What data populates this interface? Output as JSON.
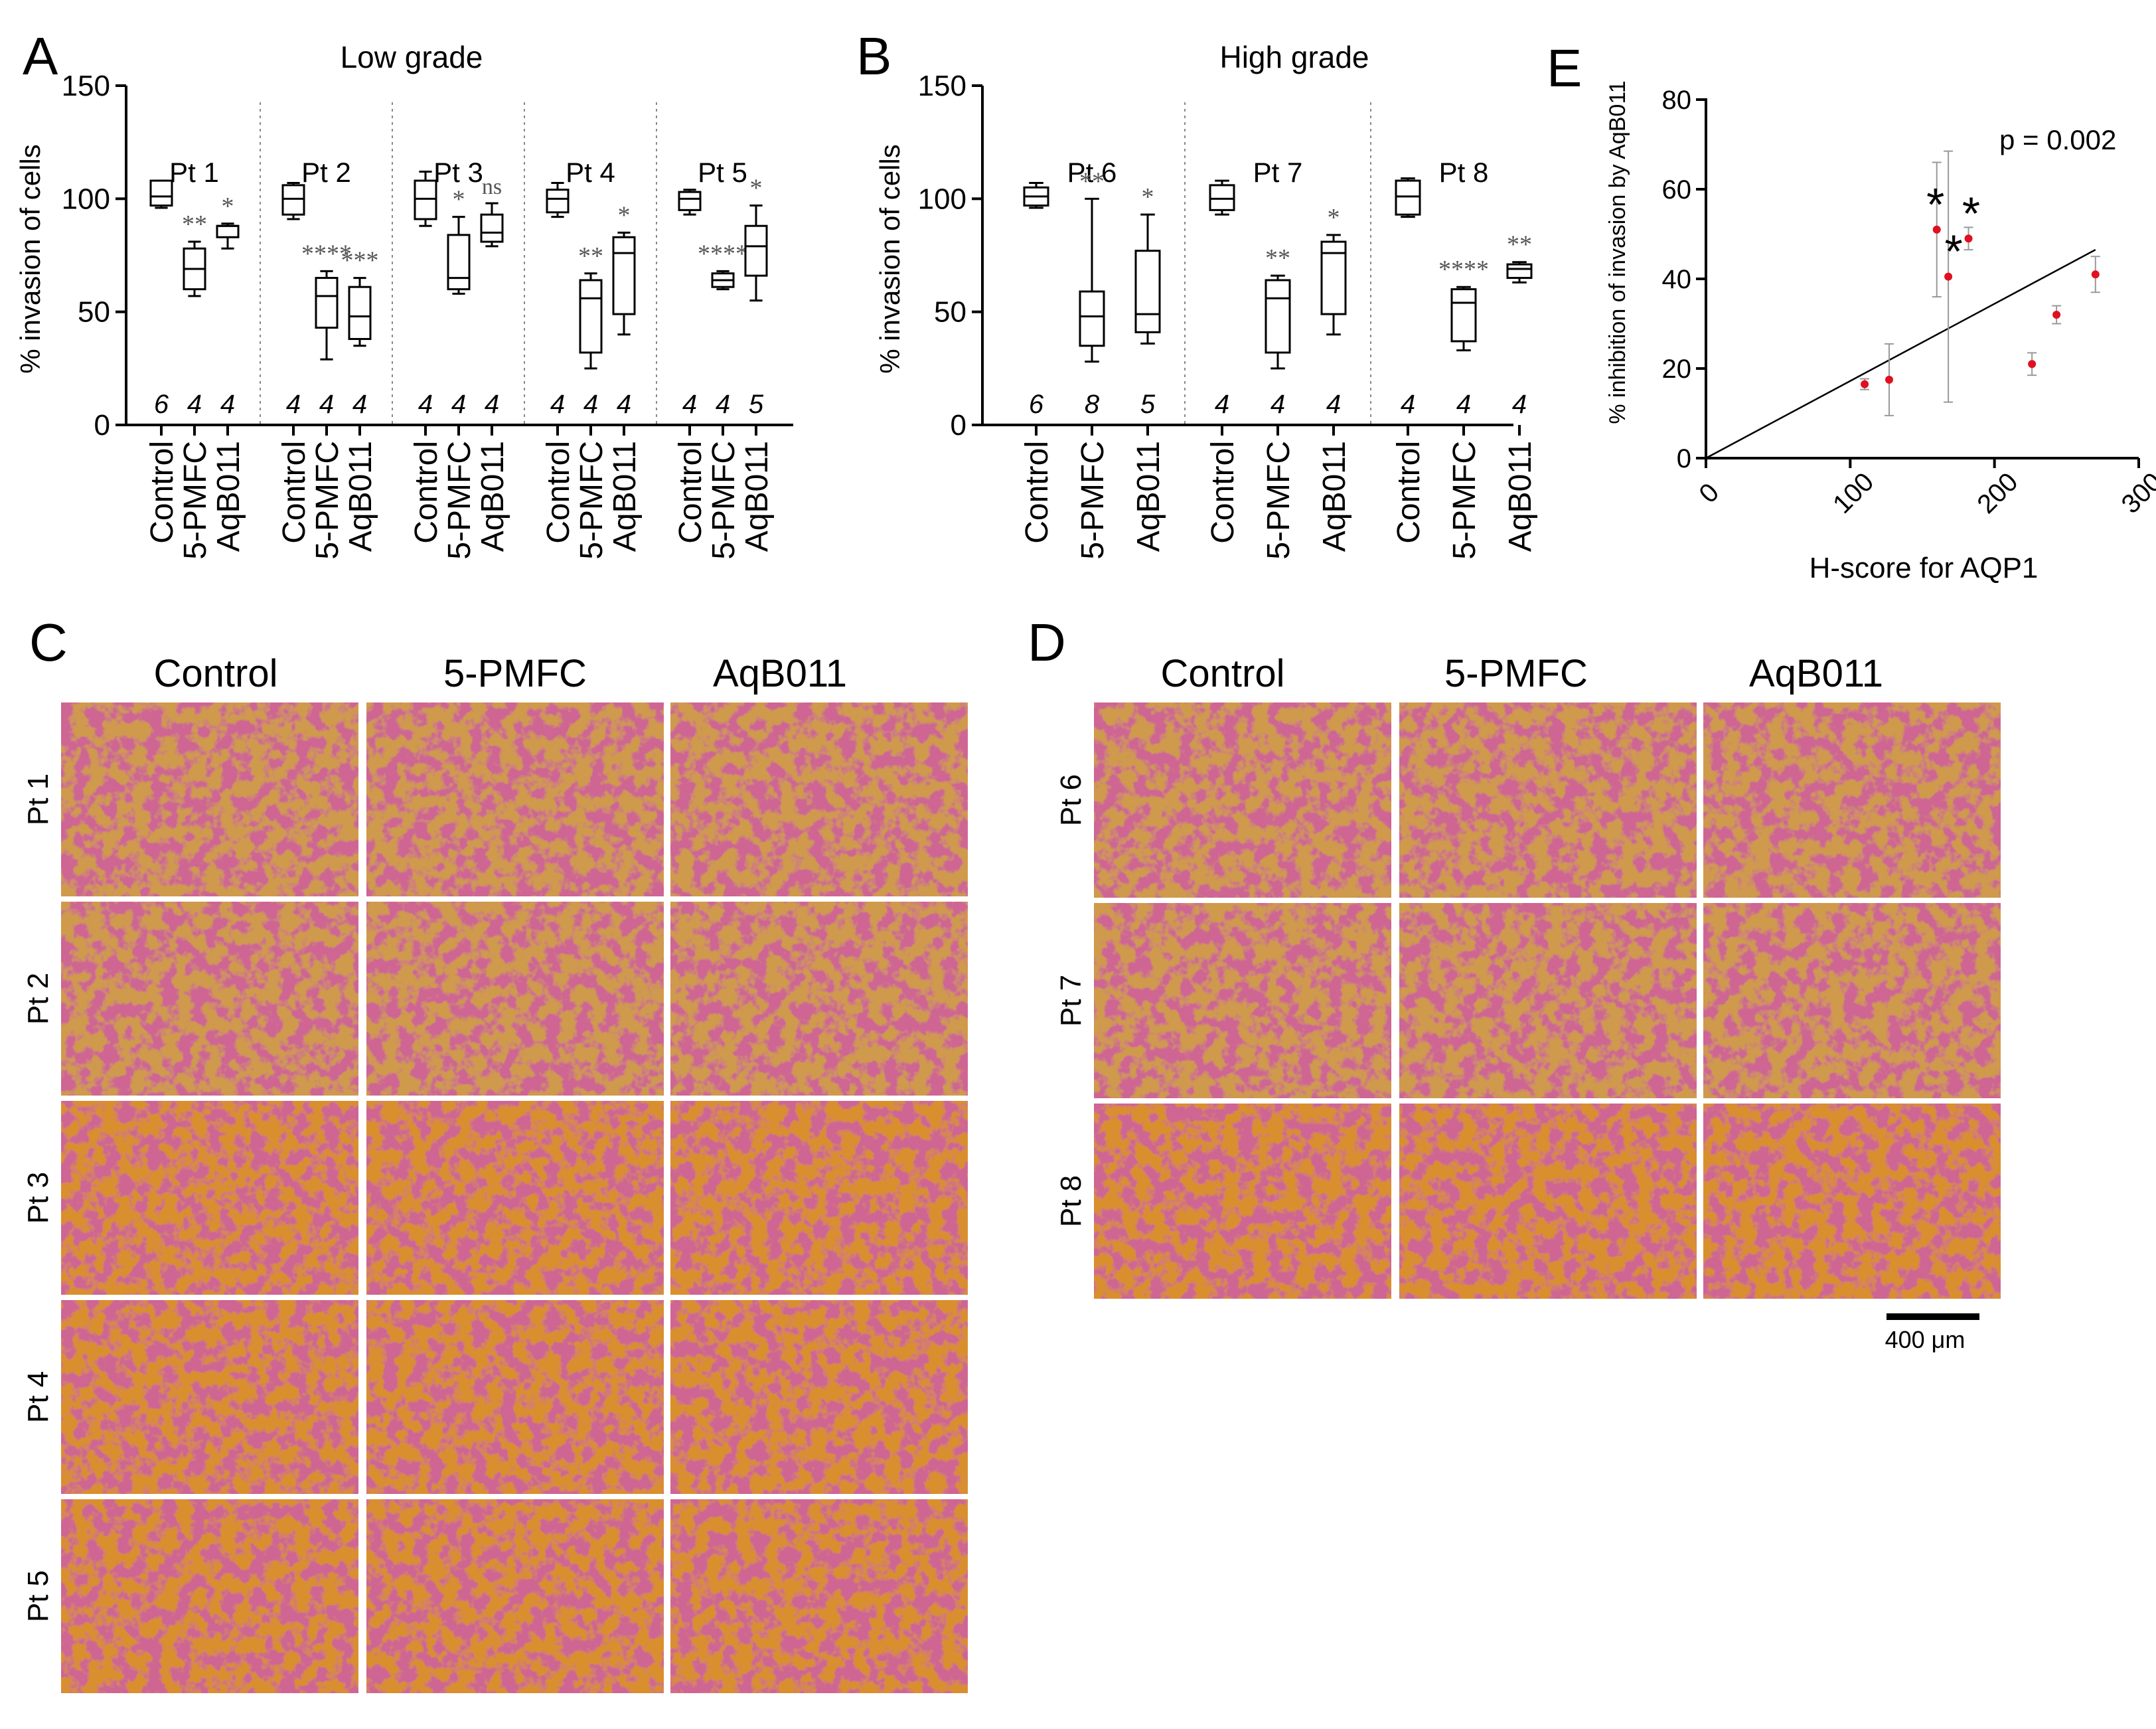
{
  "panel_letters": {
    "A": "A",
    "B": "B",
    "C": "C",
    "D": "D",
    "E": "E"
  },
  "colors": {
    "photo_bg": "#cf9a4c",
    "photo_bg_late": "#d98f2e",
    "cell_stain": "#a3244a",
    "point": "#e01020"
  },
  "chart_data": [
    {
      "type": "box",
      "panel": "A",
      "title": "Low grade",
      "ylabel": "% invasion of cells",
      "ylim": [
        0,
        150
      ],
      "yticks": [
        0,
        50,
        100,
        150
      ],
      "categories": [
        "Control",
        "5-PMFC",
        "AqB011"
      ],
      "groups": [
        {
          "name": "Pt 1",
          "boxes": [
            {
              "min": 96,
              "q1": 97,
              "median": 101,
              "q3": 108,
              "max": 108,
              "n": "6",
              "sig": ""
            },
            {
              "min": 57,
              "q1": 60,
              "median": 69,
              "q3": 78,
              "max": 81,
              "n": "4",
              "sig": "**"
            },
            {
              "min": 78,
              "q1": 83,
              "median": 88,
              "q3": 88,
              "max": 89,
              "n": "4",
              "sig": "*"
            }
          ]
        },
        {
          "name": "Pt 2",
          "boxes": [
            {
              "min": 91,
              "q1": 93,
              "median": 100,
              "q3": 106,
              "max": 107,
              "n": "4",
              "sig": ""
            },
            {
              "min": 29,
              "q1": 43,
              "median": 57,
              "q3": 65,
              "max": 68,
              "n": "4",
              "sig": "****"
            },
            {
              "min": 35,
              "q1": 38,
              "median": 48,
              "q3": 61,
              "max": 65,
              "n": "4",
              "sig": "***"
            }
          ]
        },
        {
          "name": "Pt 3",
          "boxes": [
            {
              "min": 88,
              "q1": 91,
              "median": 100,
              "q3": 108,
              "max": 112,
              "n": "4",
              "sig": ""
            },
            {
              "min": 58,
              "q1": 60,
              "median": 65,
              "q3": 84,
              "max": 92,
              "n": "4",
              "sig": "*"
            },
            {
              "min": 79,
              "q1": 81,
              "median": 85,
              "q3": 93,
              "max": 98,
              "n": "4",
              "sig": "ns"
            }
          ]
        },
        {
          "name": "Pt 4",
          "boxes": [
            {
              "min": 92,
              "q1": 94,
              "median": 100,
              "q3": 104,
              "max": 107,
              "n": "4",
              "sig": ""
            },
            {
              "min": 25,
              "q1": 32,
              "median": 56,
              "q3": 64,
              "max": 67,
              "n": "4",
              "sig": "**"
            },
            {
              "min": 40,
              "q1": 49,
              "median": 76,
              "q3": 83,
              "max": 85,
              "n": "4",
              "sig": "*"
            }
          ]
        },
        {
          "name": "Pt 5",
          "boxes": [
            {
              "min": 93,
              "q1": 95,
              "median": 100,
              "q3": 103,
              "max": 104,
              "n": "4",
              "sig": ""
            },
            {
              "min": 60,
              "q1": 61,
              "median": 64,
              "q3": 67,
              "max": 68,
              "n": "4",
              "sig": "****"
            },
            {
              "min": 55,
              "q1": 66,
              "median": 79,
              "q3": 88,
              "max": 97,
              "n": "5",
              "sig": "*"
            }
          ]
        }
      ]
    },
    {
      "type": "box",
      "panel": "B",
      "title": "High grade",
      "ylabel": "% invasion of cells",
      "ylim": [
        0,
        150
      ],
      "yticks": [
        0,
        50,
        100,
        150
      ],
      "categories": [
        "Control",
        "5-PMFC",
        "AqB011"
      ],
      "groups": [
        {
          "name": "Pt 6",
          "boxes": [
            {
              "min": 96,
              "q1": 97,
              "median": 101,
              "q3": 105,
              "max": 107,
              "n": "6",
              "sig": ""
            },
            {
              "min": 28,
              "q1": 35,
              "median": 48,
              "q3": 59,
              "max": 100,
              "n": "8",
              "sig": "**"
            },
            {
              "min": 36,
              "q1": 41,
              "median": 49,
              "q3": 77,
              "max": 93,
              "n": "5",
              "sig": "*"
            }
          ]
        },
        {
          "name": "Pt 7",
          "boxes": [
            {
              "min": 93,
              "q1": 95,
              "median": 100,
              "q3": 106,
              "max": 108,
              "n": "4",
              "sig": ""
            },
            {
              "min": 25,
              "q1": 32,
              "median": 56,
              "q3": 64,
              "max": 66,
              "n": "4",
              "sig": "**"
            },
            {
              "min": 40,
              "q1": 49,
              "median": 76,
              "q3": 81,
              "max": 84,
              "n": "4",
              "sig": "*"
            }
          ]
        },
        {
          "name": "Pt 8",
          "boxes": [
            {
              "min": 92,
              "q1": 93,
              "median": 101,
              "q3": 108,
              "max": 109,
              "n": "4",
              "sig": ""
            },
            {
              "min": 33,
              "q1": 37,
              "median": 54,
              "q3": 60,
              "max": 61,
              "n": "4",
              "sig": "****"
            },
            {
              "min": 63,
              "q1": 65,
              "median": 69,
              "q3": 71,
              "max": 72,
              "n": "4",
              "sig": "**"
            }
          ]
        }
      ]
    },
    {
      "type": "scatter",
      "panel": "E",
      "xlabel": "H-score for AQP1",
      "ylabel": "% inhibition of invasion by AqB011",
      "xlim": [
        0,
        300
      ],
      "ylim": [
        0,
        80
      ],
      "xticks": [
        0,
        100,
        200,
        300
      ],
      "yticks": [
        0,
        20,
        40,
        60,
        80
      ],
      "annotation": "p = 0.002",
      "points": [
        {
          "x": 110,
          "y": 16.5,
          "err": 1.2,
          "mark": ""
        },
        {
          "x": 127,
          "y": 17.5,
          "err": 8,
          "mark": ""
        },
        {
          "x": 160,
          "y": 51,
          "err": 15,
          "mark": "*"
        },
        {
          "x": 168,
          "y": 40.5,
          "err": 28,
          "mark": "*"
        },
        {
          "x": 182,
          "y": 49,
          "err": 2.5,
          "mark": "*"
        },
        {
          "x": 226,
          "y": 21,
          "err": 2.5,
          "mark": ""
        },
        {
          "x": 243,
          "y": 32,
          "err": 2,
          "mark": ""
        },
        {
          "x": 270,
          "y": 41,
          "err": 4,
          "mark": ""
        }
      ],
      "fit_line": {
        "x": [
          0,
          270
        ],
        "y": [
          0,
          46.5
        ]
      }
    }
  ],
  "micrographs": {
    "C": {
      "columns": [
        "Control",
        "5-PMFC",
        "AqB011"
      ],
      "rows": [
        "Pt 1",
        "Pt 2",
        "Pt 3",
        "Pt 4",
        "Pt 5"
      ]
    },
    "D": {
      "columns": [
        "Control",
        "5-PMFC",
        "AqB011"
      ],
      "rows": [
        "Pt 6",
        "Pt 7",
        "Pt 8"
      ],
      "scale_bar": "400 μm"
    }
  }
}
